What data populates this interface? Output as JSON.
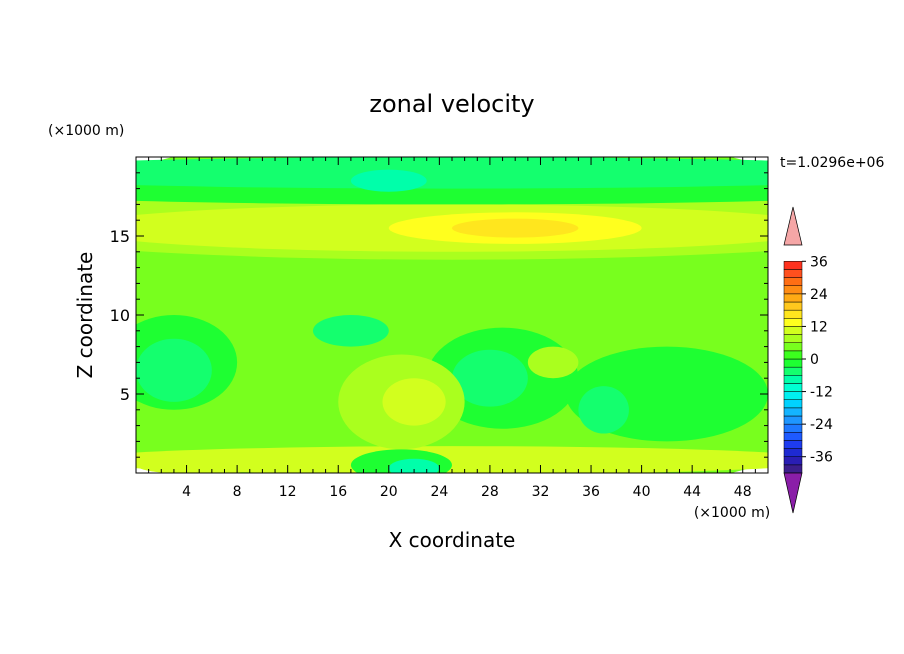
{
  "chart_data": {
    "type": "heatmap",
    "title": "zonal velocity",
    "xlabel": "X coordinate",
    "ylabel": "Z coordinate",
    "x_units": "(×1000 m)",
    "y_units": "(×1000 m)",
    "time_label": "t=1.0296e+06",
    "xlim": [
      0,
      50
    ],
    "ylim": [
      0,
      20
    ],
    "x_ticks": [
      4,
      8,
      12,
      16,
      20,
      24,
      28,
      32,
      36,
      40,
      44,
      48
    ],
    "y_ticks": [
      5,
      10,
      15
    ],
    "colorbar": {
      "levels": [
        -42,
        -39,
        -36,
        -33,
        -30,
        -27,
        -24,
        -21,
        -18,
        -15,
        -12,
        -9,
        -6,
        -3,
        0,
        3,
        6,
        9,
        12,
        15,
        18,
        21,
        24,
        27,
        30,
        33,
        36,
        39,
        42
      ],
      "colors": [
        "#3c1e8c",
        "#2a1eb4",
        "#1e2ad2",
        "#1e3cf0",
        "#1e5aff",
        "#1e78ff",
        "#1e96ff",
        "#14b4ff",
        "#00d2ff",
        "#00f0f0",
        "#00ffd2",
        "#00ffaa",
        "#14ff6e",
        "#1eff32",
        "#3cff1e",
        "#78ff1e",
        "#aaff1e",
        "#d2ff1e",
        "#ffff1e",
        "#ffe61e",
        "#ffc81e",
        "#ffaa14",
        "#ff8c14",
        "#ff6e14",
        "#ff501e",
        "#ff321e"
      ],
      "tick_labels": [
        36,
        24,
        12,
        0,
        -12,
        -24,
        -36
      ],
      "tick_values": [
        36,
        24,
        12,
        0,
        -12,
        -24,
        -36
      ],
      "over_color": "#f5a6a6",
      "under_color": "#8a1ea8"
    },
    "field_layers": [
      {
        "u": 3,
        "x": 25,
        "z": 10,
        "rx": 40,
        "rz": 12
      },
      {
        "u": -3,
        "x": 3,
        "z": 7,
        "rx": 5,
        "rz": 3
      },
      {
        "u": -3,
        "x": 29,
        "z": 6,
        "rx": 6,
        "rz": 3.2
      },
      {
        "u": -3,
        "x": 42,
        "z": 5,
        "rx": 8,
        "rz": 3
      },
      {
        "u": -6,
        "x": 3,
        "z": 6.5,
        "rx": 3,
        "rz": 2
      },
      {
        "u": -6,
        "x": 28,
        "z": 6,
        "rx": 3,
        "rz": 1.8
      },
      {
        "u": -6,
        "x": 37,
        "z": 4,
        "rx": 2,
        "rz": 1.5
      },
      {
        "u": -6,
        "x": 17,
        "z": 9,
        "rx": 3,
        "rz": 1
      },
      {
        "u": 9,
        "x": 25,
        "z": 0.8,
        "rx": 30,
        "rz": 0.9
      },
      {
        "u": 9,
        "x": 5,
        "z": 0.5,
        "rx": 5,
        "rz": 0.6
      },
      {
        "u": -3,
        "x": 21,
        "z": 0.5,
        "rx": 4,
        "rz": 1
      },
      {
        "u": -9,
        "x": 22,
        "z": 0.3,
        "rx": 2,
        "rz": 0.6
      },
      {
        "u": 9,
        "x": 36,
        "z": 0.6,
        "rx": 2.5,
        "rz": 0.8
      },
      {
        "u": 6,
        "x": 21,
        "z": 4.5,
        "rx": 5,
        "rz": 3
      },
      {
        "u": 9,
        "x": 22,
        "z": 4.5,
        "rx": 2.5,
        "rz": 1.5
      },
      {
        "u": 6,
        "x": 33,
        "z": 7,
        "rx": 2,
        "rz": 1
      },
      {
        "u": 6,
        "x": 25,
        "z": 16,
        "rx": 40,
        "rz": 2.5
      },
      {
        "u": 9,
        "x": 25,
        "z": 15.5,
        "rx": 30,
        "rz": 1.5
      },
      {
        "u": 12,
        "x": 30,
        "z": 15.5,
        "rx": 10,
        "rz": 1
      },
      {
        "u": 15,
        "x": 30,
        "z": 15.5,
        "rx": 5,
        "rz": 0.6
      },
      {
        "u": -3,
        "x": 25,
        "z": 18,
        "rx": 40,
        "rz": 1
      },
      {
        "u": -6,
        "x": 25,
        "z": 19,
        "rx": 40,
        "rz": 1
      },
      {
        "u": -9,
        "x": 20,
        "z": 18.5,
        "rx": 3,
        "rz": 0.7
      }
    ]
  }
}
